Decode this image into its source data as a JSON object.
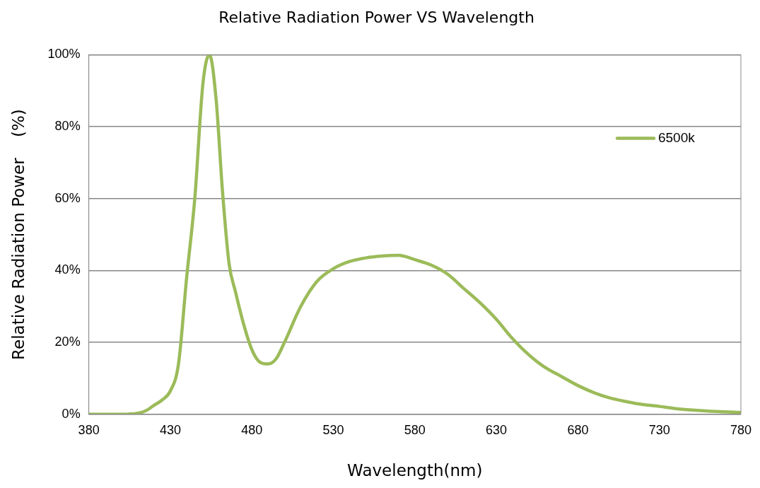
{
  "chart_data": {
    "type": "line",
    "title": "Relative Radiation Power VS Wavelength",
    "xlabel": "Wavelength(nm)",
    "ylabel": "Relative Radiation Power    (%)",
    "xlim": [
      380,
      780
    ],
    "xticks": [
      380,
      430,
      480,
      530,
      580,
      630,
      680,
      730,
      780
    ],
    "ylim": [
      0,
      100
    ],
    "yticks": [
      {
        "value": 0,
        "label": "0%"
      },
      {
        "value": 20,
        "label": "20%"
      },
      {
        "value": 40,
        "label": "40%"
      },
      {
        "value": 60,
        "label": "60%"
      },
      {
        "value": 80,
        "label": "80%"
      },
      {
        "value": 100,
        "label": "100%"
      }
    ],
    "grid": "y",
    "legend": "top right",
    "marker": "none",
    "line_style": "solid",
    "series": [
      {
        "name": "6500k",
        "color": "#9bbb59",
        "x": [
          380,
          400,
          410,
          415,
          420,
          425,
          430,
          435,
          440,
          445,
          450,
          454,
          458,
          462,
          466,
          470,
          475,
          480,
          485,
          490,
          495,
          500,
          510,
          520,
          530,
          540,
          550,
          560,
          570,
          580,
          590,
          600,
          610,
          620,
          630,
          640,
          650,
          660,
          670,
          680,
          690,
          700,
          710,
          720,
          730,
          740,
          750,
          760,
          770,
          780
        ],
        "values": [
          0,
          0,
          0.3,
          1,
          2.5,
          4,
          6.5,
          14,
          38,
          60,
          92,
          100,
          88,
          62,
          42,
          34,
          25,
          18,
          14.5,
          14,
          15.5,
          20,
          30,
          37,
          40.5,
          42.5,
          43.5,
          44,
          44.2,
          43,
          41.5,
          39,
          35,
          31,
          26.4,
          21,
          16.5,
          13,
          10.5,
          8,
          6,
          4.5,
          3.5,
          2.7,
          2.2,
          1.6,
          1.2,
          0.9,
          0.7,
          0.5
        ]
      }
    ]
  }
}
